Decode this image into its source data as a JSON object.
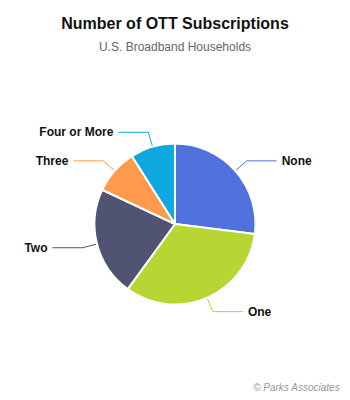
{
  "chart_data": {
    "type": "pie",
    "title": "Number of OTT Subscriptions",
    "subtitle": "U.S. Broadband Households",
    "annotations": [
      "© Parks Associates"
    ],
    "categories": [
      "None",
      "One",
      "Two",
      "Three",
      "Four or More"
    ],
    "values": [
      27,
      33,
      22,
      9,
      9
    ]
  }
}
